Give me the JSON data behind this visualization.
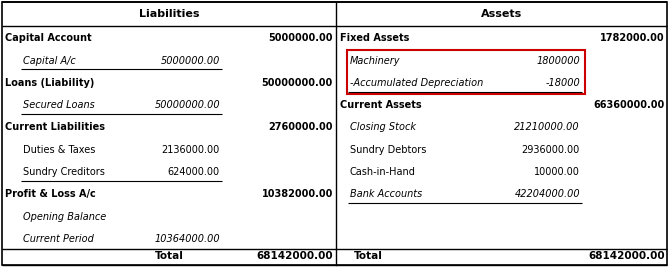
{
  "title_left": "Liabilities",
  "title_right": "Assets",
  "bg_color": "#ffffff",
  "highlight_box_color": "#cc0000",
  "figsize": [
    6.69,
    2.67
  ],
  "dpi": 100,
  "liabilities": [
    {
      "label": "Capital Account",
      "indent": false,
      "col1": "",
      "col2": "5000000.00",
      "bold": true,
      "italic": false,
      "underline_after": false
    },
    {
      "label": "Capital A/c",
      "indent": true,
      "col1": "5000000.00",
      "col2": "",
      "bold": false,
      "italic": true,
      "underline_after": true
    },
    {
      "label": "Loans (Liability)",
      "indent": false,
      "col1": "",
      "col2": "50000000.00",
      "bold": true,
      "italic": false,
      "underline_after": false
    },
    {
      "label": "Secured Loans",
      "indent": true,
      "col1": "50000000.00",
      "col2": "",
      "bold": false,
      "italic": true,
      "underline_after": true
    },
    {
      "label": "Current Liabilities",
      "indent": false,
      "col1": "",
      "col2": "2760000.00",
      "bold": true,
      "italic": false,
      "underline_after": false
    },
    {
      "label": "Duties & Taxes",
      "indent": true,
      "col1": "2136000.00",
      "col2": "",
      "bold": false,
      "italic": false,
      "underline_after": false
    },
    {
      "label": "Sundry Creditors",
      "indent": true,
      "col1": "624000.00",
      "col2": "",
      "bold": false,
      "italic": false,
      "underline_after": true
    },
    {
      "label": "Profit & Loss A/c",
      "indent": false,
      "col1": "",
      "col2": "10382000.00",
      "bold": true,
      "italic": false,
      "underline_after": false
    },
    {
      "label": "Opening Balance",
      "indent": true,
      "col1": "",
      "col2": "",
      "bold": false,
      "italic": true,
      "underline_after": false
    },
    {
      "label": "Current Period",
      "indent": true,
      "col1": "10364000.00",
      "col2": "",
      "bold": false,
      "italic": true,
      "underline_after": false
    }
  ],
  "assets": [
    {
      "label": "Fixed Assets",
      "indent": false,
      "col1": "",
      "col2": "1782000.00",
      "bold": true,
      "italic": false,
      "highlight": false,
      "underline_after": false
    },
    {
      "label": "Machinery",
      "indent": true,
      "col1": "1800000",
      "col2": "",
      "bold": false,
      "italic": true,
      "highlight": true,
      "underline_after": false
    },
    {
      "label": "-Accumulated Depreciation",
      "indent": true,
      "col1": "-18000",
      "col2": "",
      "bold": false,
      "italic": true,
      "highlight": true,
      "underline_after": true
    },
    {
      "label": "Current Assets",
      "indent": false,
      "col1": "",
      "col2": "66360000.00",
      "bold": true,
      "italic": false,
      "highlight": false,
      "underline_after": false
    },
    {
      "label": "Closing Stock",
      "indent": true,
      "col1": "21210000.00",
      "col2": "",
      "bold": false,
      "italic": true,
      "highlight": false,
      "underline_after": false
    },
    {
      "label": "Sundry Debtors",
      "indent": true,
      "col1": "2936000.00",
      "col2": "",
      "bold": false,
      "italic": false,
      "highlight": false,
      "underline_after": false
    },
    {
      "label": "Cash-in-Hand",
      "indent": true,
      "col1": "10000.00",
      "col2": "",
      "bold": false,
      "italic": false,
      "highlight": false,
      "underline_after": false
    },
    {
      "label": "Bank Accounts",
      "indent": true,
      "col1": "42204000.00",
      "col2": "",
      "bold": false,
      "italic": true,
      "highlight": false,
      "underline_after": true
    }
  ],
  "total_label": "Total",
  "total_left": "68142000.00",
  "total_right": "68142000.00",
  "font_size": 7.0,
  "font_size_header": 8.0,
  "font_size_total": 7.5
}
